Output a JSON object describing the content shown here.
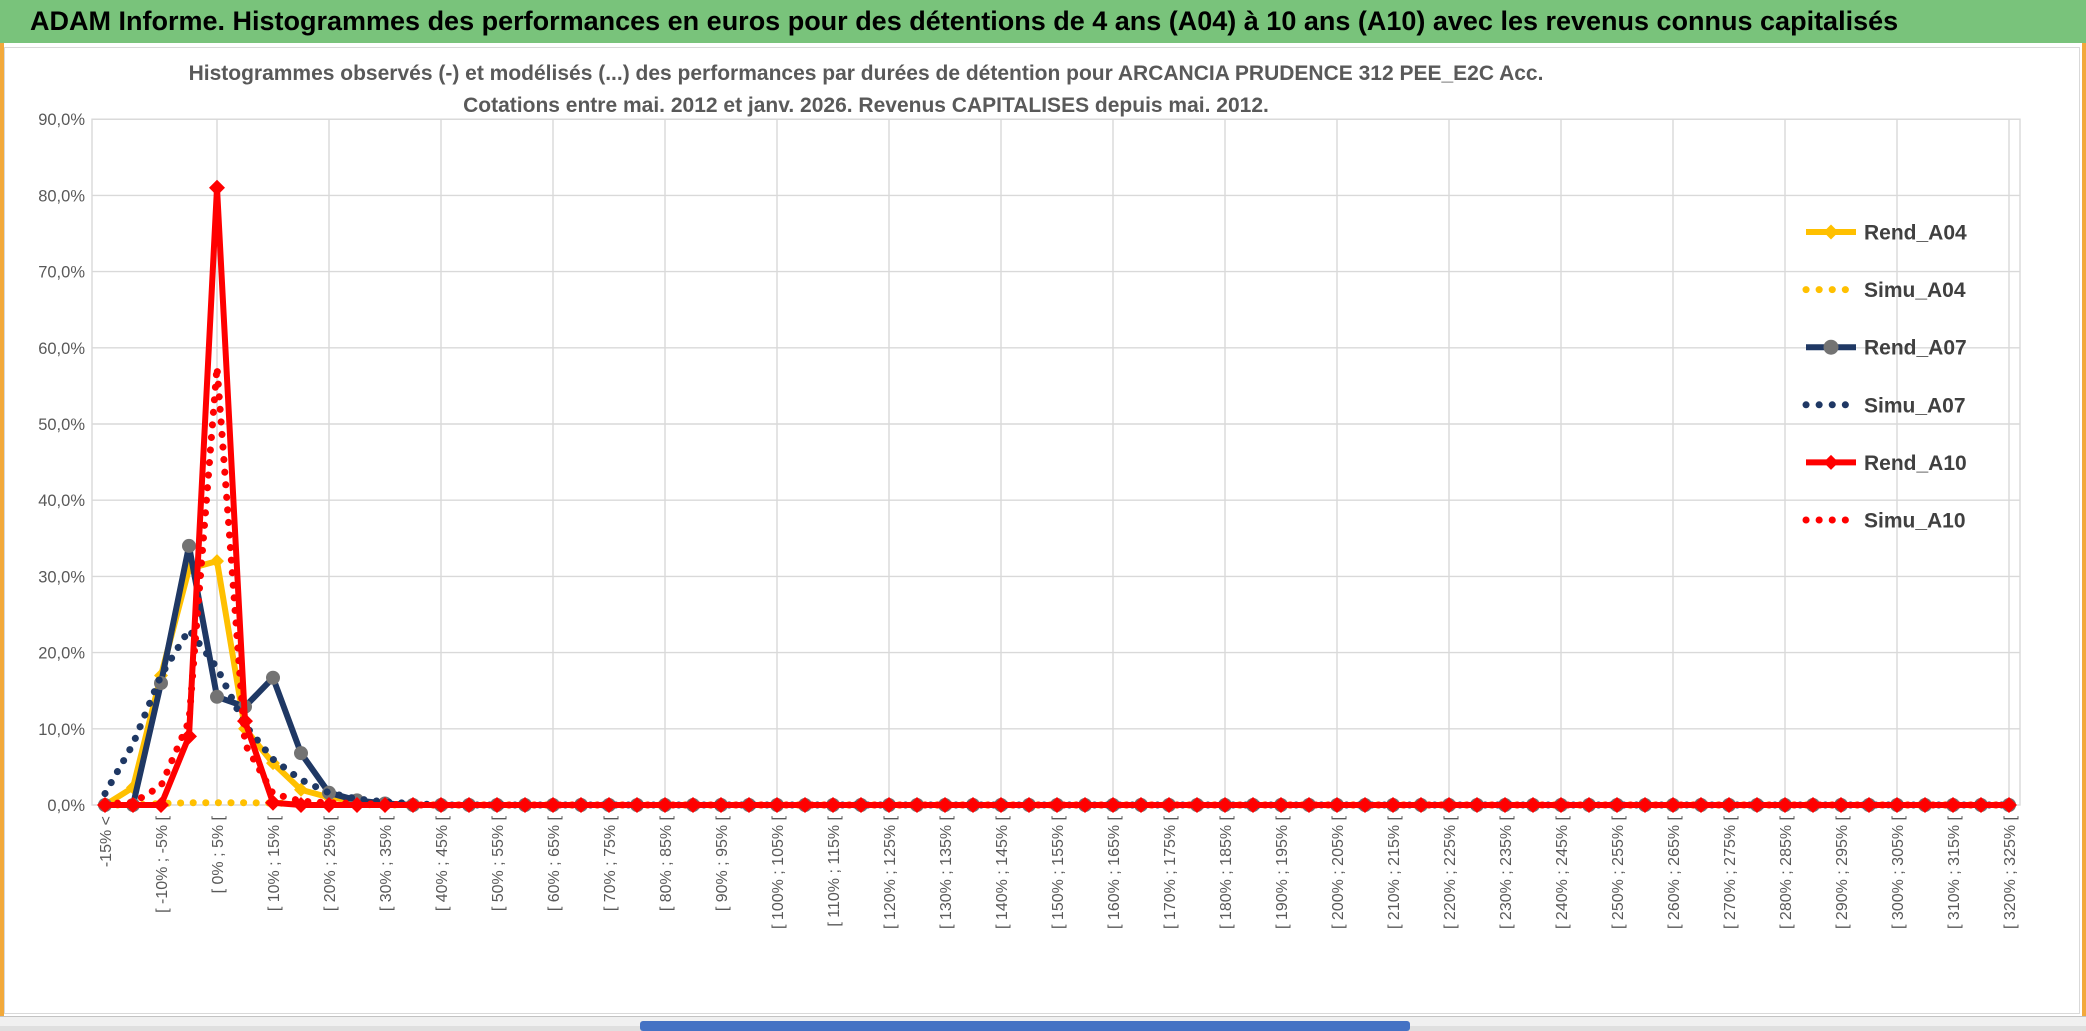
{
  "header": {
    "title": "ADAM Informe. Histogrammes des performances en euros pour des détentions de 4 ans (A04) à 10 ans (A10) avec les revenus connus capitalisés"
  },
  "colors": {
    "header_bg": "#79C37B",
    "gold_border": "#F2A93B",
    "gridline": "#D9D9D9",
    "axis_text": "#595959",
    "title_text": "#595959",
    "legend_text": "#404040",
    "scroll_thumb": "#4472C4",
    "yellow": "#FFC000",
    "navy": "#1F3864",
    "red": "#FF0000",
    "navy_marker": "#737373"
  },
  "chart_data": {
    "type": "line",
    "title_line1": "Histogrammes observés (-) et modélisés (...) des performances par durées de détention pour ARCANCIA PRUDENCE 312 PEE_E2C Acc.",
    "title_line2": "Cotations entre mai. 2012 et janv. 2026. Revenus CAPITALISES depuis mai. 2012.",
    "xlabel": "",
    "ylabel": "",
    "ylim": [
      0,
      90
    ],
    "ytick_step": 10,
    "yticks": [
      "0,0%",
      "10,0%",
      "20,0%",
      "30,0%",
      "40,0%",
      "50,0%",
      "60,0%",
      "70,0%",
      "80,0%",
      "90,0%"
    ],
    "grid": true,
    "legend_position": "right-inside",
    "categories": [
      "-15% <",
      "",
      "[ -10% ; -5% [",
      "",
      "[ 0% ; 5% [",
      "",
      "[ 10% ; 15% [",
      "",
      "[ 20% ; 25% [",
      "",
      "[ 30% ; 35% [",
      "",
      "[ 40% ; 45% [",
      "",
      "[ 50% ; 55% [",
      "",
      "[ 60% ; 65% [",
      "",
      "[ 70% ; 75% [",
      "",
      "[ 80% ; 85% [",
      "",
      "[ 90% ; 95% [",
      "",
      "[ 100% ; 105% [",
      "",
      "[ 110% ; 115% [",
      "",
      "[ 120% ; 125% [",
      "",
      "[ 130% ; 135% [",
      "",
      "[ 140% ; 145% [",
      "",
      "[ 150% ; 155% [",
      "",
      "[ 160% ; 165% [",
      "",
      "[ 170% ; 175% [",
      "",
      "[ 180% ; 185% [",
      "",
      "[ 190% ; 195% [",
      "",
      "[ 200% ; 205% [",
      "",
      "[ 210% ; 215% [",
      "",
      "[ 220% ; 225% [",
      "",
      "[ 230% ; 235% [",
      "",
      "[ 240% ; 245% [",
      "",
      "[ 250% ; 255% [",
      "",
      "[ 260% ; 265% [",
      "",
      "[ 270% ; 275% [",
      "",
      "[ 280% ; 285% [",
      "",
      "[ 290% ; 295% [",
      "",
      "[ 300% ; 305% [",
      "",
      "[ 310% ; 315% [",
      "",
      "[ 320% ; 325% ["
    ],
    "series": [
      {
        "name": "Rend_A04",
        "color": "#FFC000",
        "style": "solid",
        "marker": "diamond",
        "marker_color": "#FFC000",
        "values": [
          0,
          2.3,
          17,
          31,
          32,
          10,
          5.5,
          2,
          1,
          0.5,
          0.2,
          0,
          0,
          0,
          0,
          0,
          0,
          0,
          0,
          0,
          0,
          0,
          0,
          0,
          0,
          0,
          0,
          0,
          0,
          0,
          0,
          0,
          0,
          0,
          0,
          0,
          0,
          0,
          0,
          0,
          0,
          0,
          0,
          0,
          0,
          0,
          0,
          0,
          0,
          0,
          0,
          0,
          0,
          0,
          0,
          0,
          0,
          0,
          0,
          0,
          0,
          0,
          0,
          0,
          0,
          0,
          0,
          0,
          0
        ]
      },
      {
        "name": "Simu_A04",
        "color": "#FFC000",
        "style": "dotted",
        "values": [
          0,
          0,
          0.2,
          0.3,
          0.3,
          0.3,
          0.25,
          0.2,
          0.1,
          0.05,
          0,
          0,
          0,
          0,
          0,
          0,
          0,
          0,
          0,
          0,
          0,
          0,
          0,
          0,
          0,
          0,
          0,
          0,
          0,
          0,
          0,
          0,
          0,
          0,
          0,
          0,
          0,
          0,
          0,
          0,
          0,
          0,
          0,
          0,
          0,
          0,
          0,
          0,
          0,
          0,
          0,
          0,
          0,
          0,
          0,
          0,
          0,
          0,
          0,
          0,
          0,
          0,
          0,
          0,
          0,
          0,
          0,
          0,
          0
        ]
      },
      {
        "name": "Rend_A07",
        "color": "#1F3864",
        "style": "solid",
        "marker": "circle",
        "marker_color": "#737373",
        "values": [
          0,
          0,
          16,
          34,
          14.2,
          12.9,
          16.7,
          6.8,
          1.6,
          0.6,
          0.2,
          0,
          0,
          0,
          0,
          0,
          0,
          0,
          0,
          0,
          0,
          0,
          0,
          0,
          0,
          0,
          0,
          0,
          0,
          0,
          0,
          0,
          0,
          0,
          0,
          0,
          0,
          0,
          0,
          0,
          0,
          0,
          0,
          0,
          0,
          0,
          0,
          0,
          0,
          0,
          0,
          0,
          0,
          0,
          0,
          0,
          0,
          0,
          0,
          0,
          0,
          0,
          0,
          0,
          0,
          0,
          0,
          0,
          0
        ]
      },
      {
        "name": "Simu_A07",
        "color": "#1F3864",
        "style": "dotted",
        "values": [
          1.5,
          8,
          17,
          23,
          18,
          10.5,
          6,
          3.3,
          1.6,
          0.8,
          0.4,
          0.2,
          0,
          0,
          0,
          0,
          0,
          0,
          0,
          0,
          0,
          0,
          0,
          0,
          0,
          0,
          0,
          0,
          0,
          0,
          0,
          0,
          0,
          0,
          0,
          0,
          0,
          0,
          0,
          0,
          0,
          0,
          0,
          0,
          0,
          0,
          0,
          0,
          0,
          0,
          0,
          0,
          0,
          0,
          0,
          0,
          0,
          0,
          0,
          0,
          0,
          0,
          0,
          0,
          0,
          0,
          0,
          0,
          0
        ]
      },
      {
        "name": "Rend_A10",
        "color": "#FF0000",
        "style": "solid",
        "marker": "diamond",
        "marker_color": "#FF0000",
        "values": [
          0,
          0,
          0,
          9,
          81,
          11,
          0.3,
          0,
          0,
          0,
          0,
          0,
          0,
          0,
          0,
          0,
          0,
          0,
          0,
          0,
          0,
          0,
          0,
          0,
          0,
          0,
          0,
          0,
          0,
          0,
          0,
          0,
          0,
          0,
          0,
          0,
          0,
          0,
          0,
          0,
          0,
          0,
          0,
          0,
          0,
          0,
          0,
          0,
          0,
          0,
          0,
          0,
          0,
          0,
          0,
          0,
          0,
          0,
          0,
          0,
          0,
          0,
          0,
          0,
          0,
          0,
          0,
          0,
          0
        ]
      },
      {
        "name": "Simu_A10",
        "color": "#FF0000",
        "style": "dotted",
        "values": [
          0.2,
          0.3,
          2.5,
          11,
          57.5,
          8,
          1.5,
          0.5,
          0.3,
          0.2,
          0.1,
          0,
          0,
          0,
          0,
          0,
          0,
          0,
          0,
          0,
          0,
          0,
          0,
          0,
          0,
          0,
          0,
          0,
          0,
          0,
          0,
          0,
          0,
          0,
          0,
          0,
          0,
          0,
          0,
          0,
          0,
          0,
          0,
          0,
          0,
          0,
          0,
          0,
          0,
          0,
          0,
          0,
          0,
          0,
          0,
          0,
          0,
          0,
          0,
          0,
          0,
          0,
          0,
          0,
          0,
          0,
          0,
          0,
          0
        ]
      }
    ]
  }
}
